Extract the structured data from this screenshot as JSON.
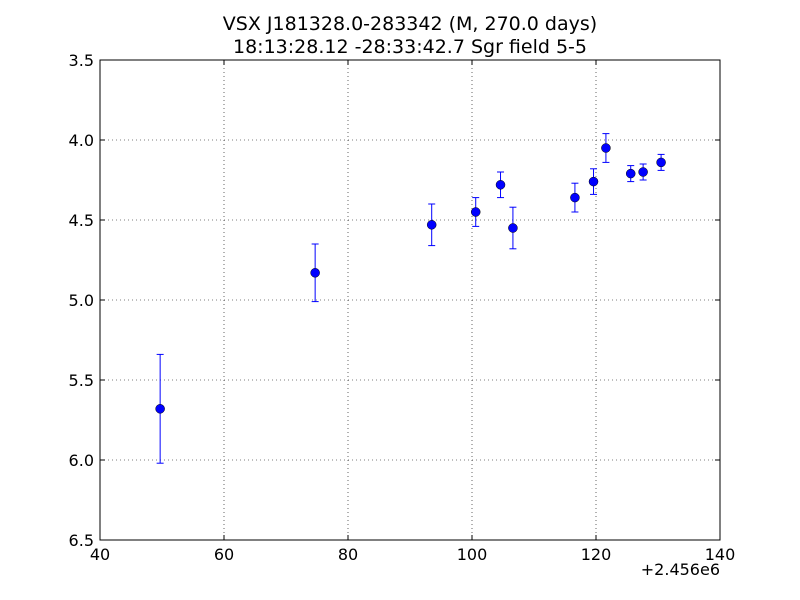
{
  "chart_data": {
    "type": "scatter",
    "title_line1": "VSX J181328.0-283342  (M, 270.0 days)",
    "title_line2": "18:13:28.12 -28:33:42.7 Sgr field 5-5",
    "xlabel": "",
    "ylabel": "",
    "x_offset_label": "+2.456e6",
    "xlim": [
      40,
      140
    ],
    "ylim": [
      3.5,
      6.5
    ],
    "y_inverted": true,
    "grid": true,
    "x_ticks": [
      40,
      60,
      80,
      100,
      120,
      140
    ],
    "x_tick_labels": [
      "40",
      "60",
      "80",
      "100",
      "120",
      "140"
    ],
    "y_ticks": [
      3.5,
      4.0,
      4.5,
      5.0,
      5.5,
      6.0,
      6.5
    ],
    "y_tick_labels": [
      "3.5",
      "4.0",
      "4.5",
      "5.0",
      "5.5",
      "6.0",
      "6.5"
    ],
    "marker_color": "#0000ff",
    "series": [
      {
        "points": [
          {
            "x": 49.7,
            "y": 5.68,
            "err": 0.34
          },
          {
            "x": 74.7,
            "y": 4.83,
            "err": 0.18
          },
          {
            "x": 93.5,
            "y": 4.53,
            "err": 0.13
          },
          {
            "x": 100.6,
            "y": 4.45,
            "err": 0.09
          },
          {
            "x": 104.6,
            "y": 4.28,
            "err": 0.08
          },
          {
            "x": 106.6,
            "y": 4.55,
            "err": 0.13
          },
          {
            "x": 116.6,
            "y": 4.36,
            "err": 0.09
          },
          {
            "x": 119.6,
            "y": 4.26,
            "err": 0.08
          },
          {
            "x": 121.6,
            "y": 4.05,
            "err": 0.09
          },
          {
            "x": 125.6,
            "y": 4.21,
            "err": 0.05
          },
          {
            "x": 127.6,
            "y": 4.2,
            "err": 0.05
          },
          {
            "x": 130.5,
            "y": 4.14,
            "err": 0.05
          }
        ]
      }
    ]
  }
}
